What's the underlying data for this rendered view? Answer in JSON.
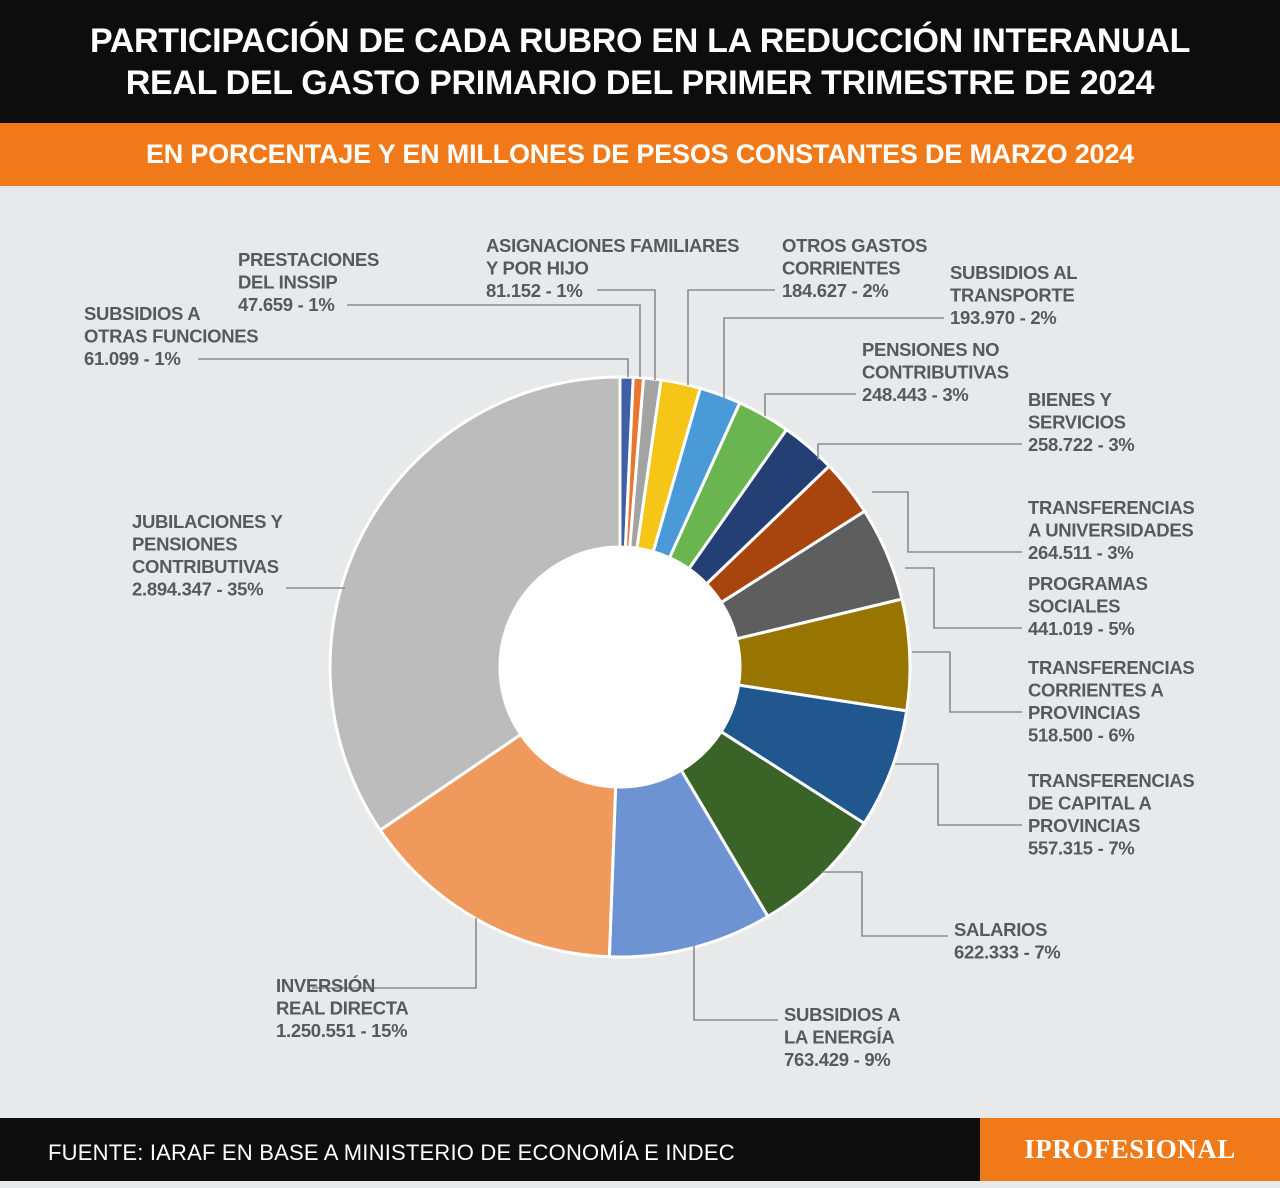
{
  "header": {
    "title_line1": "PARTICIPACIÓN DE CADA RUBRO EN LA REDUCCIÓN INTERANUAL",
    "title_line2": "REAL DEL GASTO PRIMARIO DEL PRIMER TRIMESTRE DE 2024",
    "subtitle": "EN PORCENTAJE Y EN MILLONES DE PESOS CONSTANTES DE MARZO 2024"
  },
  "footer": {
    "source": "FUENTE: IARAF EN BASE A MINISTERIO DE ECONOMÍA E INDEC",
    "brand": "IPROFESIONAL"
  },
  "colors": {
    "title_bg": "#0d0d0d",
    "accent": "#f07a1a",
    "background": "#e8e9ea",
    "label_text": "#555a5f"
  },
  "chart_data": {
    "type": "pie",
    "variant": "donut",
    "legend": "callout labels around the ring",
    "slices": [
      {
        "label_lines": [
          "SUBSIDIOS A",
          "OTRAS FUNCIONES"
        ],
        "value": 61099,
        "value_text": "61.099",
        "percent_text": "1%",
        "color": "#3f5fa6"
      },
      {
        "label_lines": [
          "PRESTACIONES",
          "DEL INSSIP"
        ],
        "value": 47659,
        "value_text": "47.659",
        "percent_text": "1%",
        "color": "#e8762f"
      },
      {
        "label_lines": [
          "ASIGNACIONES FAMILIARES",
          "Y POR HIJO"
        ],
        "value": 81152,
        "value_text": "81.152",
        "percent_text": "1%",
        "color": "#a3a3a3"
      },
      {
        "label_lines": [
          "OTROS GASTOS",
          "CORRIENTES"
        ],
        "value": 184627,
        "value_text": "184.627",
        "percent_text": "2%",
        "color": "#f5c518"
      },
      {
        "label_lines": [
          "SUBSIDIOS AL",
          "TRANSPORTE"
        ],
        "value": 193970,
        "value_text": "193.970",
        "percent_text": "2%",
        "color": "#4b9ad8"
      },
      {
        "label_lines": [
          "PENSIONES NO",
          "CONTRIBUTIVAS"
        ],
        "value": 248443,
        "value_text": "248.443",
        "percent_text": "3%",
        "color": "#6ab550"
      },
      {
        "label_lines": [
          "BIENES Y",
          "SERVICIOS"
        ],
        "value": 258722,
        "value_text": "258.722",
        "percent_text": "3%",
        "color": "#233f73"
      },
      {
        "label_lines": [
          "TRANSFERENCIAS",
          "A UNIVERSIDADES"
        ],
        "value": 264511,
        "value_text": "264.511",
        "percent_text": "3%",
        "color": "#a8450f"
      },
      {
        "label_lines": [
          "PROGRAMAS",
          "SOCIALES"
        ],
        "value": 441019,
        "value_text": "441.019",
        "percent_text": "5%",
        "color": "#5e5e5e"
      },
      {
        "label_lines": [
          "TRANSFERENCIAS",
          "CORRIENTES A",
          "PROVINCIAS"
        ],
        "value": 518500,
        "value_text": "518.500",
        "percent_text": "6%",
        "color": "#987400"
      },
      {
        "label_lines": [
          "TRANSFERENCIAS",
          "DE CAPITAL A",
          "PROVINCIAS"
        ],
        "value": 557315,
        "value_text": "557.315",
        "percent_text": "7%",
        "color": "#21578f"
      },
      {
        "label_lines": [
          "SALARIOS"
        ],
        "value": 622333,
        "value_text": "622.333",
        "percent_text": "7%",
        "color": "#3a6328"
      },
      {
        "label_lines": [
          "SUBSIDIOS A",
          "LA ENERGÍA"
        ],
        "value": 763429,
        "value_text": "763.429",
        "percent_text": "9%",
        "color": "#6e93d3"
      },
      {
        "label_lines": [
          "INVERSIÓN",
          "REAL DIRECTA"
        ],
        "value": 1250551,
        "value_text": "1.250.551",
        "percent_text": "15%",
        "color": "#ef9a5c"
      },
      {
        "label_lines": [
          "JUBILACIONES Y",
          "PENSIONES",
          "CONTRIBUTIVAS"
        ],
        "value": 2894347,
        "value_text": "2.894.347",
        "percent_text": "35%",
        "color": "#bcbcbc"
      }
    ]
  }
}
